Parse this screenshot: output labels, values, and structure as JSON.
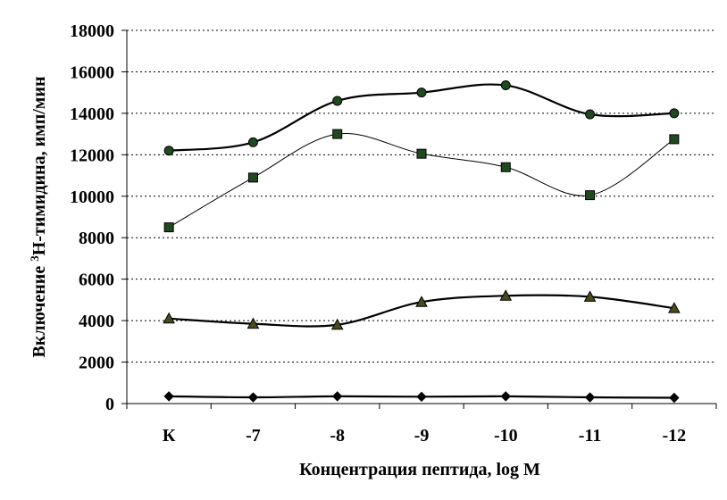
{
  "chart_data": {
    "type": "line",
    "title": "",
    "xlabel": "Концентрация пептида, log M",
    "ylabel": {
      "prefix": "Включение ",
      "superscript": "3",
      "suffix": "H-тимидина, имп/мин"
    },
    "categories": [
      "К",
      "-7",
      "-8",
      "-9",
      "-10",
      "-11",
      "-12"
    ],
    "ylim": [
      0,
      18000
    ],
    "yticks": [
      "0",
      "2000",
      "4000",
      "6000",
      "8000",
      "10000",
      "12000",
      "14000",
      "16000",
      "18000"
    ],
    "grid": "horizontal-dotted",
    "legend": "none",
    "series": [
      {
        "values": [
          12200,
          12600,
          14600,
          15000,
          15350,
          13950,
          14000
        ],
        "marker": "circle",
        "color": "#1f4a1f",
        "line_weight": "thick"
      },
      {
        "values": [
          8500,
          10900,
          13000,
          12050,
          11400,
          10050,
          12750
        ],
        "marker": "square",
        "color": "#1f4a1f",
        "line_weight": "thin"
      },
      {
        "values": [
          4100,
          3850,
          3800,
          4900,
          5200,
          5150,
          4600
        ],
        "marker": "triangle",
        "color": "#4a4a1f",
        "line_weight": "thick"
      },
      {
        "values": [
          350,
          300,
          350,
          330,
          350,
          300,
          280
        ],
        "marker": "diamond",
        "color": "#000000",
        "line_weight": "thick"
      }
    ]
  }
}
